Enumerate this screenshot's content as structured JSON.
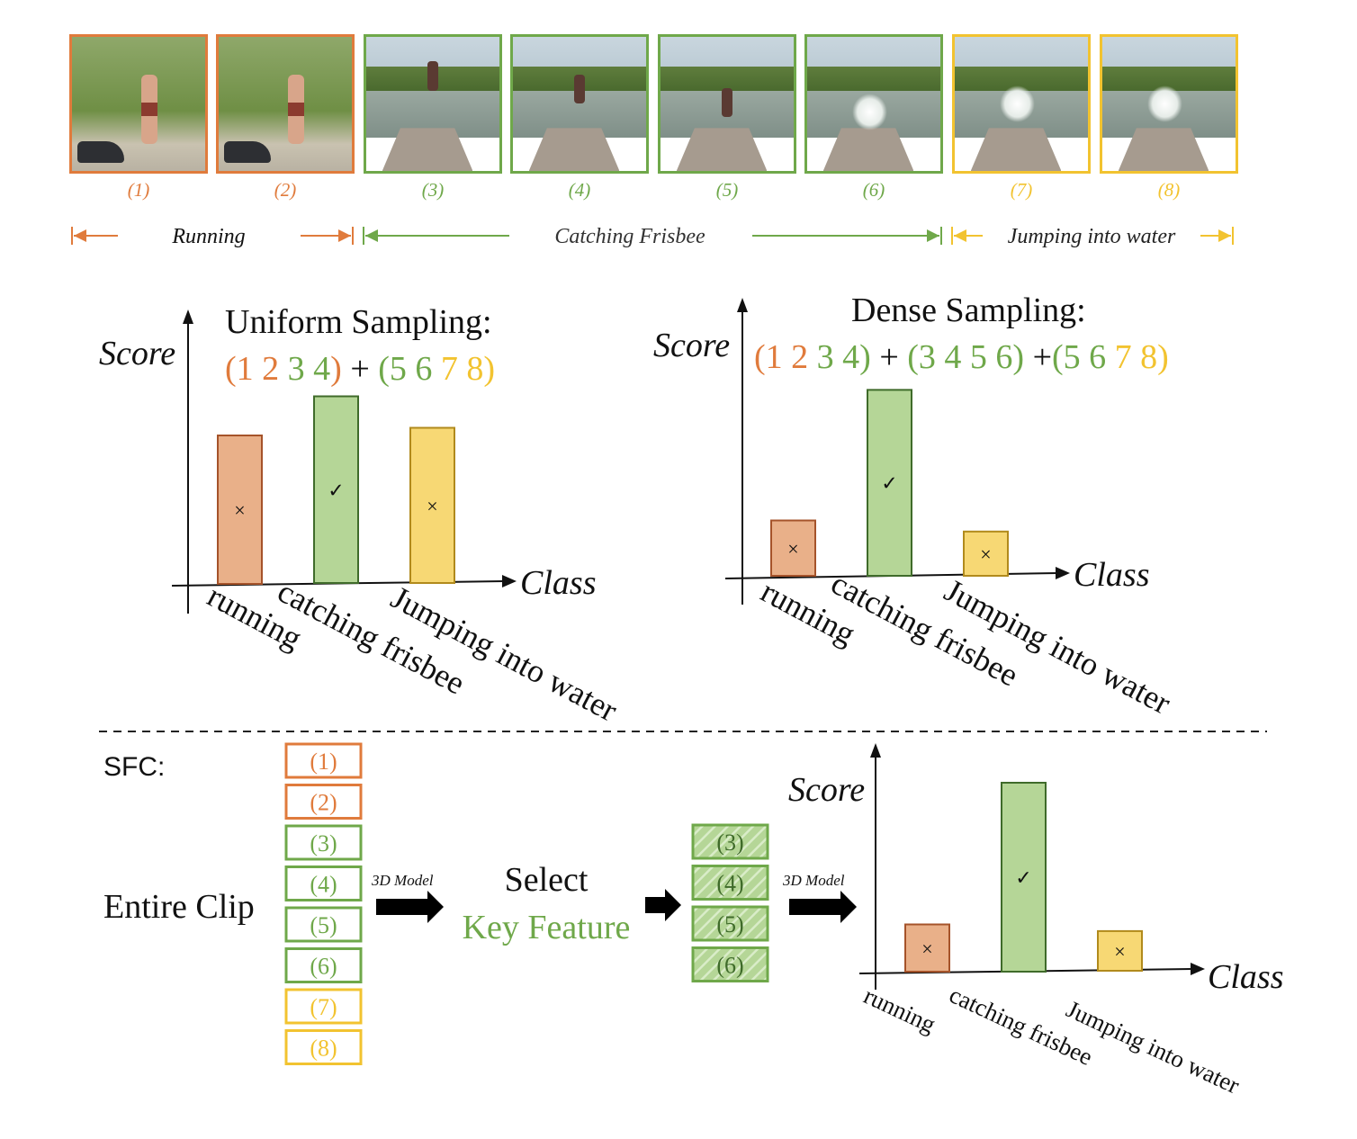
{
  "colors": {
    "orange": "#e07b3c",
    "green": "#6fa84a",
    "yellow": "#f2c330",
    "orange_fill": "#e9b089",
    "green_fill": "#b5d697",
    "yellow_fill": "#f7d874",
    "green_dark": "#3f6b2a",
    "orange_dark": "#a5532a",
    "yellow_dark": "#b18a1c",
    "black": "#111111"
  },
  "frames": [
    {
      "label": "(1)",
      "group": "orange",
      "scene": "garden"
    },
    {
      "label": "(2)",
      "group": "orange",
      "scene": "garden"
    },
    {
      "label": "(3)",
      "group": "green",
      "scene": "lake-jump-high"
    },
    {
      "label": "(4)",
      "group": "green",
      "scene": "lake-jump-mid"
    },
    {
      "label": "(5)",
      "group": "green",
      "scene": "lake-jump-low"
    },
    {
      "label": "(6)",
      "group": "green",
      "scene": "lake-splash-small"
    },
    {
      "label": "(7)",
      "group": "yellow",
      "scene": "lake-splash"
    },
    {
      "label": "(8)",
      "group": "yellow",
      "scene": "lake-splash"
    }
  ],
  "segments": [
    {
      "label": "Running",
      "group": "orange"
    },
    {
      "label": "Catching Frisbee",
      "group": "green"
    },
    {
      "label": "Jumping into water",
      "group": "yellow"
    }
  ],
  "uniform": {
    "title": "Uniform Sampling:",
    "axis_y": "Score",
    "axis_x": "Class",
    "formula": [
      {
        "t": "(1 ",
        "c": "orange"
      },
      {
        "t": "2 ",
        "c": "orange"
      },
      {
        "t": "3 4",
        "c": "green"
      },
      {
        "t": ")",
        "c": "orange"
      },
      {
        "t": " + ",
        "c": "black"
      },
      {
        "t": "(5 6 ",
        "c": "green"
      },
      {
        "t": "7 8",
        "c": "yellow"
      },
      {
        "t": ")",
        "c": "yellow"
      }
    ],
    "categories": [
      "running",
      "catching frisbee",
      "Jumping into water"
    ],
    "values": [
      0.66,
      0.83,
      0.69
    ],
    "marks": [
      "×",
      "✓",
      "×"
    ]
  },
  "dense": {
    "title": "Dense Sampling:",
    "axis_y": "Score",
    "axis_x": "Class",
    "formula": [
      {
        "t": "(1 2 ",
        "c": "orange"
      },
      {
        "t": "3 4)",
        "c": "green"
      },
      {
        "t": " + ",
        "c": "black"
      },
      {
        "t": "(3 4 5 6)",
        "c": "green"
      },
      {
        "t": " +",
        "c": "black"
      },
      {
        "t": "(5 6 ",
        "c": "green"
      },
      {
        "t": "7 8)",
        "c": "yellow"
      }
    ],
    "categories": [
      "running",
      "catching frisbee",
      "Jumping into water"
    ],
    "values": [
      0.25,
      0.84,
      0.2
    ],
    "marks": [
      "×",
      "✓",
      "×"
    ]
  },
  "sfc": {
    "label": "SFC:",
    "entire_clip": "Entire Clip",
    "model_label": "3D Model",
    "select_label": "Select",
    "key_feature": "Key Feature",
    "clip_items": [
      {
        "t": "(1)",
        "c": "orange"
      },
      {
        "t": "(2)",
        "c": "orange"
      },
      {
        "t": "(3)",
        "c": "green"
      },
      {
        "t": "(4)",
        "c": "green"
      },
      {
        "t": "(5)",
        "c": "green"
      },
      {
        "t": "(6)",
        "c": "green"
      },
      {
        "t": "(7)",
        "c": "yellow"
      },
      {
        "t": "(8)",
        "c": "yellow"
      }
    ],
    "selected_items": [
      "(3)",
      "(4)",
      "(5)",
      "(6)"
    ],
    "chart": {
      "axis_y": "Score",
      "axis_x": "Class",
      "categories": [
        "running",
        "catching frisbee",
        "Jumping into water"
      ],
      "values": [
        0.25,
        1.0,
        0.21
      ],
      "marks": [
        "×",
        "✓",
        "×"
      ]
    }
  },
  "chart_data": [
    {
      "type": "bar",
      "title": "Uniform Sampling:",
      "ylabel": "Score",
      "xlabel": "Class",
      "categories": [
        "running",
        "catching frisbee",
        "Jumping into water"
      ],
      "values": [
        0.66,
        0.83,
        0.69
      ]
    },
    {
      "type": "bar",
      "title": "Dense Sampling:",
      "ylabel": "Score",
      "xlabel": "Class",
      "categories": [
        "running",
        "catching frisbee",
        "Jumping into water"
      ],
      "values": [
        0.25,
        0.84,
        0.2
      ]
    },
    {
      "type": "bar",
      "title": "",
      "ylabel": "Score",
      "xlabel": "Class",
      "categories": [
        "running",
        "catching frisbee",
        "Jumping into water"
      ],
      "values": [
        0.25,
        1.0,
        0.21
      ]
    }
  ]
}
